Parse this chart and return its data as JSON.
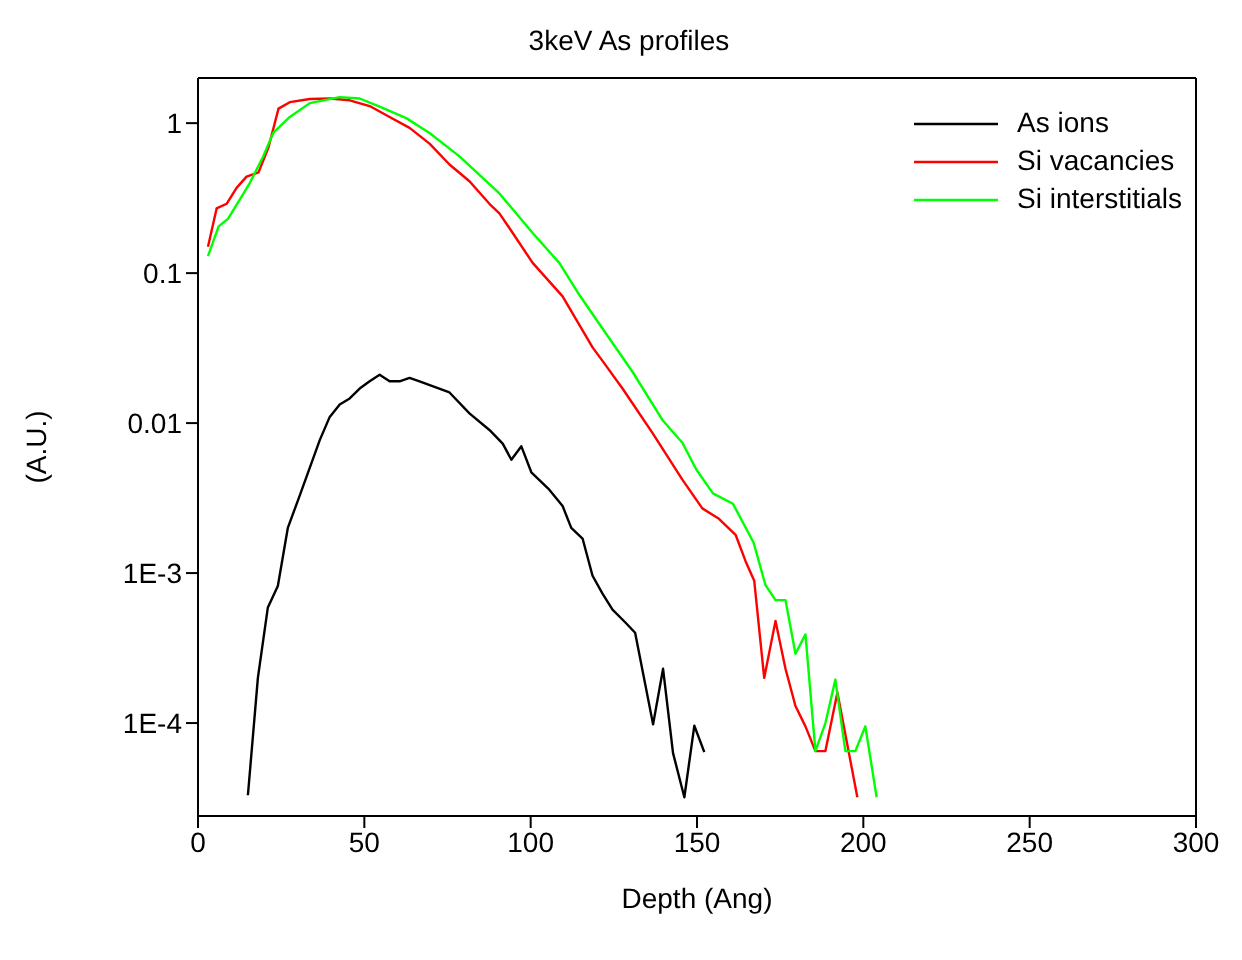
{
  "chart_data": {
    "type": "line",
    "title": "3keV As profiles",
    "xlabel": "Depth (Ang)",
    "ylabel": "(A.U.)",
    "log": "y",
    "xlim": [
      0,
      300
    ],
    "xticks": [
      0,
      50,
      100,
      150,
      200,
      250,
      300
    ],
    "ylim": [
      2.4e-05,
      2
    ],
    "yticks": [
      {
        "value": 1,
        "label": "1"
      },
      {
        "value": 0.1,
        "label": "0.1"
      },
      {
        "value": 0.01,
        "label": "0.01"
      },
      {
        "value": 0.001,
        "label": "1E-3"
      },
      {
        "value": 0.0001,
        "label": "1E-4"
      }
    ],
    "legend": "top right",
    "series": [
      {
        "name": "As ions",
        "color": "#000000",
        "x": [
          15,
          18,
          21,
          24,
          27,
          30.6,
          36.6,
          39.6,
          42.6,
          45.6,
          48.6,
          51.6,
          54.6,
          57.6,
          60.6,
          63.6,
          66.6,
          75.6,
          81.6,
          87.6,
          91.6,
          94.2,
          97.2,
          100.2,
          105.6,
          109.6,
          112.2,
          115.6,
          118.6,
          121.6,
          124.6,
          128.4,
          131.4,
          136.8,
          139.8,
          142.8,
          146.2,
          149.2,
          152.2
        ],
        "values": [
          3.3e-05,
          0.0002,
          0.00059,
          0.00082,
          0.002,
          0.0033,
          0.0077,
          0.011,
          0.0133,
          0.0146,
          0.017,
          0.019,
          0.021,
          0.019,
          0.019,
          0.02,
          0.019,
          0.016,
          0.0116,
          0.009,
          0.0073,
          0.0057,
          0.007,
          0.0047,
          0.0036,
          0.0028,
          0.002,
          0.0017,
          0.00096,
          0.00073,
          0.00057,
          0.00047,
          0.0004,
          9.8e-05,
          0.00023,
          6.3e-05,
          3.2e-05,
          9.6e-05,
          6.4e-05
        ]
      },
      {
        "name": "Si vacancies",
        "color": "#ff0000",
        "x": [
          3,
          5.6,
          8.6,
          11.6,
          14.6,
          18.2,
          21.2,
          24.2,
          27.6,
          33.6,
          39.6,
          45.6,
          51.6,
          57.6,
          63.6,
          69.6,
          75.6,
          81.6,
          87.6,
          90.6,
          93.6,
          100.6,
          109.6,
          118.6,
          121.6,
          127.6,
          136.6,
          145.6,
          151.6,
          156.6,
          161.6,
          164.6,
          167.2,
          170.2,
          173.6,
          176.6,
          179.6,
          182.6,
          185.6,
          188.6,
          192.2,
          198.2
        ],
        "values": [
          0.15,
          0.27,
          0.29,
          0.37,
          0.44,
          0.47,
          0.69,
          1.25,
          1.38,
          1.45,
          1.46,
          1.42,
          1.3,
          1.1,
          0.93,
          0.73,
          0.53,
          0.41,
          0.29,
          0.25,
          0.2,
          0.117,
          0.07,
          0.032,
          0.026,
          0.017,
          0.0086,
          0.0042,
          0.0027,
          0.0023,
          0.0018,
          0.0012,
          0.00089,
          0.0002,
          0.00048,
          0.00023,
          0.00013,
          9.5e-05,
          6.5e-05,
          6.5e-05,
          0.00016,
          3.2e-05
        ]
      },
      {
        "name": "Si interstitials",
        "color": "#00ff00",
        "x": [
          3,
          6.2,
          9,
          12.6,
          15.6,
          19.6,
          22.6,
          27.6,
          33.6,
          42.6,
          48.6,
          54.6,
          62.6,
          69.6,
          78.6,
          90.6,
          100.6,
          108.6,
          114.2,
          120.6,
          130.6,
          139.6,
          145.6,
          149.8,
          154.8,
          160.8,
          167,
          170.6,
          173.6,
          176.6,
          179.6,
          182.6,
          185.6,
          188.6,
          191.6,
          194.6,
          197.6,
          200.6,
          204
        ],
        "values": [
          0.13,
          0.205,
          0.23,
          0.31,
          0.4,
          0.6,
          0.86,
          1.1,
          1.36,
          1.49,
          1.46,
          1.29,
          1.08,
          0.86,
          0.6,
          0.34,
          0.185,
          0.117,
          0.074,
          0.046,
          0.022,
          0.0105,
          0.0074,
          0.0049,
          0.0034,
          0.0029,
          0.0016,
          0.00083,
          0.00066,
          0.00066,
          0.00029,
          0.00039,
          6.5e-05,
          0.0001,
          0.000195,
          6.5e-05,
          6.5e-05,
          9.5e-05,
          3.2e-05
        ]
      }
    ]
  }
}
